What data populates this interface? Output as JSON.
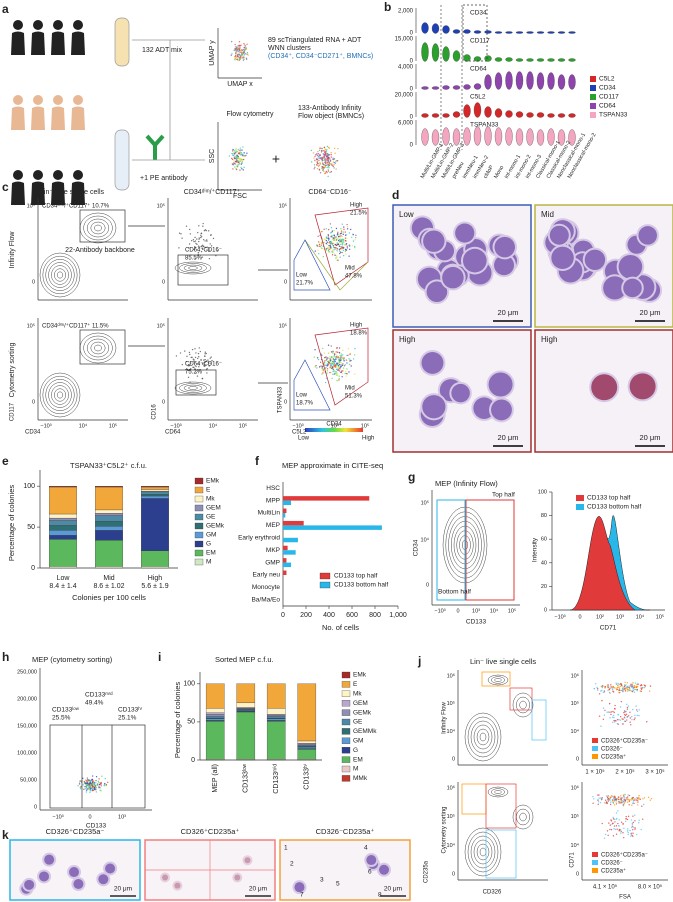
{
  "chart_data": [
    {
      "type": "stacked_bar",
      "panel_label": "e",
      "title": "TSPAN33⁺C5L2⁺ c.f.u.",
      "y_label": "Percentage of colonies",
      "x_label": "Colonies per 100 cells",
      "categories": [
        "Low",
        "Mid",
        "High"
      ],
      "category_notes": [
        "8.4 ± 1.4",
        "8.6 ± 1.02",
        "5.6 ± 1.9"
      ],
      "ylim": [
        0,
        110
      ],
      "yticks": [
        0,
        50,
        100
      ],
      "series": [
        {
          "name": "EMk",
          "color": "#a52a2a",
          "values": [
            1,
            1,
            1
          ]
        },
        {
          "name": "E",
          "color": "#f2a73b",
          "values": [
            33,
            28,
            3
          ]
        },
        {
          "name": "Mk",
          "color": "#fff2c4",
          "values": [
            5,
            4,
            2
          ]
        },
        {
          "name": "GEM",
          "color": "#8e8fb5",
          "values": [
            3,
            3,
            1
          ]
        },
        {
          "name": "GE",
          "color": "#4d8aa6",
          "values": [
            6,
            7,
            3
          ]
        },
        {
          "name": "GEMk",
          "color": "#2f6f73",
          "values": [
            6,
            6,
            2
          ]
        },
        {
          "name": "GM",
          "color": "#5b9bd5",
          "values": [
            6,
            5,
            3
          ]
        },
        {
          "name": "G",
          "color": "#2b3f8e",
          "values": [
            5,
            12,
            64
          ]
        },
        {
          "name": "EM",
          "color": "#5cb85c",
          "values": [
            33,
            32,
            19
          ]
        },
        {
          "name": "M",
          "color": "#cfe8c0",
          "values": [
            2,
            2,
            2
          ]
        }
      ]
    },
    {
      "type": "hbar",
      "panel_label": "f",
      "title": "MEP approximate in CITE-seq",
      "x_label": "No. of cells",
      "categories": [
        "HSC",
        "MPP",
        "MultiLin",
        "MEP",
        "Early erythroid",
        "MKP",
        "GMP",
        "Early neu",
        "Monocyte",
        "Ba/Ma/Eo"
      ],
      "xlim": [
        0,
        1000
      ],
      "xticks": [
        0,
        200,
        400,
        600,
        800,
        {
          "value": 1000,
          "label": "1,000"
        }
      ],
      "series": [
        {
          "name": "CD133 top half",
          "color": "#e03a3a",
          "values": [
            0,
            750,
            30,
            180,
            0,
            40,
            30,
            30,
            0,
            0
          ]
        },
        {
          "name": "CD133 bottom half",
          "color": "#29b6e8",
          "values": [
            0,
            70,
            20,
            860,
            130,
            110,
            70,
            0,
            0,
            0
          ]
        }
      ]
    },
    {
      "type": "stacked_bar",
      "panel_label": "i",
      "title": "Sorted MEP c.f.u.",
      "y_label": "Percentage of colonies",
      "categories": [
        "MEP (all)",
        "CD133ˡᵒʷ",
        "CD133ᵐⁱᵈ",
        "CD133ʰⁱ"
      ],
      "ylim": [
        0,
        105
      ],
      "yticks": [
        0,
        50,
        100
      ],
      "series": [
        {
          "name": "EMk",
          "color": "#a52a2a",
          "values": [
            0,
            0,
            0,
            0
          ]
        },
        {
          "name": "E",
          "color": "#f2a73b",
          "values": [
            32,
            25,
            32,
            75
          ]
        },
        {
          "name": "Mk",
          "color": "#fff2c4",
          "values": [
            6,
            6,
            8,
            3
          ]
        },
        {
          "name": "GEM",
          "color": "#b9a7d0",
          "values": [
            2,
            1,
            1,
            1
          ]
        },
        {
          "name": "GEMk",
          "color": "#8e8fb5",
          "values": [
            3,
            1,
            2,
            2
          ]
        },
        {
          "name": "GE",
          "color": "#4d8aa6",
          "values": [
            2,
            1,
            2,
            1
          ]
        },
        {
          "name": "GEMMk",
          "color": "#2f6f73",
          "values": [
            1,
            1,
            1,
            1
          ]
        },
        {
          "name": "GM",
          "color": "#5b9bd5",
          "values": [
            2,
            1,
            2,
            2
          ]
        },
        {
          "name": "G",
          "color": "#2b3f8e",
          "values": [
            1,
            1,
            1,
            1
          ]
        },
        {
          "name": "EM",
          "color": "#5cb85c",
          "values": [
            50,
            62,
            50,
            13
          ]
        },
        {
          "name": "M",
          "color": "#e8c8c8",
          "values": [
            1,
            1,
            1,
            1
          ]
        },
        {
          "name": "MMk",
          "color": "#c0392b",
          "values": [
            0,
            0,
            0,
            0
          ]
        }
      ]
    }
  ],
  "panels": {
    "a": {
      "label": "a",
      "texts": [
        "132 ADT mix",
        "89 scTriangulated RNA + ADT",
        "WNN clusters",
        "(CD34⁺, CD34⁻CD271⁺, BMNCs)",
        "UMAP y",
        "UMAP x",
        "Flow cytometry",
        "133-Antibody Infinity",
        "Flow object (BMNCs)",
        "+1 PE antibody",
        "SSC",
        "FSC",
        "22-Antibody backbone",
        "+"
      ]
    },
    "b": {
      "label": "b",
      "markers": [
        "CD34",
        "CD117",
        "CD64",
        "C5L2",
        "TSPAN33"
      ],
      "ticks": [
        "2,000",
        "0",
        "15,000",
        "0",
        "4,000",
        "0",
        "20,000",
        "0",
        "6,000",
        "0"
      ],
      "clusters": [
        "Multi/Lin-GMP-1",
        "Multi/Lin-GMP-2",
        "Multi/Lin-GMP-3",
        "preNeu",
        "immNeu-1",
        "immNeu-2",
        "cMoP",
        "Mono",
        "int-mono-1",
        "int-mono-2",
        "int-mono-3",
        "Classical-mono-1",
        "Classical-mono-2",
        "Nonclassical-mono-1",
        "Nonclassical-mono-2"
      ],
      "legend": [
        {
          "name": "C5L2",
          "color": "#d62728"
        },
        {
          "name": "CD34",
          "color": "#1f3fb4"
        },
        {
          "name": "CD117",
          "color": "#2ca02c"
        },
        {
          "name": "CD64",
          "color": "#8e44ad"
        },
        {
          "name": "TSPAN33",
          "color": "#f4a6c0"
        }
      ]
    },
    "c": {
      "label": "c",
      "texts": [
        "Lin⁻ Live single cells",
        "CD34ᵈⁱᵐ/⁺CD117⁺",
        "CD64⁻CD16⁻",
        "Infinity Flow",
        "Cytometry sorting",
        "CD34ᵈⁱᵐ/⁺CD117⁺ 10.7%",
        "CD64⁻CD16⁻",
        "85.5%",
        "High",
        "21.5%",
        "Mid",
        "47.8%",
        "Low",
        "21.7%",
        "CD34ᵈⁱᵐ/⁺CD117⁺ 11.5%",
        "CD64⁻CD16⁻",
        "75.2%",
        "High",
        "18.8%",
        "Mid",
        "51.3%",
        "Low",
        "18.7%",
        "CD117",
        "CD34",
        "CD16",
        "CD64",
        "TSPAN33",
        "C5L2",
        "CD34",
        "Low",
        "High"
      ],
      "ticks": [
        "−10³",
        "0",
        "10⁴",
        "10⁵"
      ]
    },
    "d": {
      "label": "d",
      "texts": [
        "Low",
        "Mid",
        "High",
        "High",
        "20 μm"
      ]
    },
    "g": {
      "label": "g",
      "texts": [
        "MEP (Infinity Flow)",
        "Top half",
        "Bottom half",
        "CD34",
        "CD133",
        "CD133 top half",
        "CD133 bottom half",
        "Intensity",
        "CD71"
      ],
      "flow_ticks": [
        "−10³",
        "0",
        "10³",
        "10⁴",
        "10⁵"
      ],
      "hist_yticks": [
        0,
        20,
        40,
        60,
        80,
        100
      ],
      "hist_xticks": [
        "−10³",
        "0",
        "10²",
        "10³",
        "10⁴",
        "10⁵"
      ]
    },
    "h": {
      "label": "h",
      "texts": [
        "MEP (cytometry sorting)",
        "CD133ˡᵒʷ",
        "25.5%",
        "CD133ᵐⁱᵈ",
        "49.4%",
        "CD133ʰⁱ",
        "25.1%",
        "CD133"
      ],
      "yticks": [
        "250,000",
        "200,000",
        "150,000",
        "100,000",
        "50,000",
        "0"
      ],
      "xticks": [
        "−10³",
        "0",
        "10³"
      ]
    },
    "j": {
      "label": "j",
      "texts": [
        "Lin⁻ live single cells",
        "Infinity Flow",
        "Cytometry sorting",
        "CD235a",
        "CD326",
        "FSA",
        "CD71",
        "1 × 10⁵",
        "2 × 10⁵",
        "3 × 10⁵",
        "4.1 × 10⁵",
        "8.0 × 10⁵"
      ],
      "ticks": [
        "10⁶",
        "10⁵",
        "10⁴",
        "0"
      ],
      "legend": [
        {
          "name": "CD326⁺CD235a⁻",
          "color": "#e53935"
        },
        {
          "name": "CD326⁻",
          "color": "#4fc3f7"
        },
        {
          "name": "CD235a⁺",
          "color": "#ff9800"
        }
      ]
    },
    "k": {
      "label": "k",
      "texts": [
        "CD326⁺CD235a⁻",
        "CD326⁺CD235a⁺",
        "CD326⁻CD235a⁺",
        "20 μm"
      ],
      "cell_numbers": [
        1,
        2,
        3,
        4,
        5,
        6,
        7,
        8
      ]
    }
  }
}
